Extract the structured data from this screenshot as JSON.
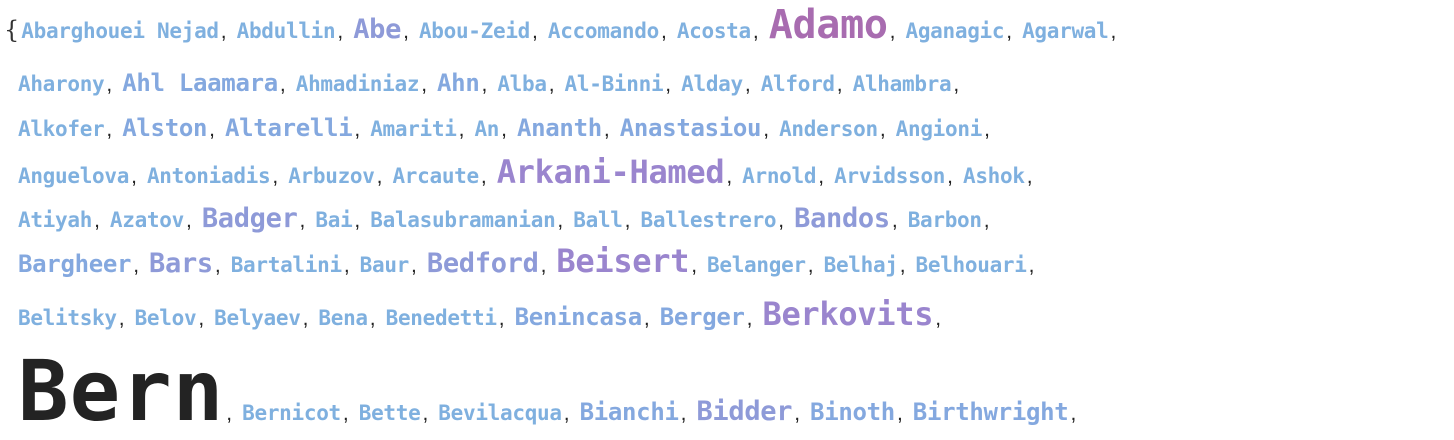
{
  "open_brace": "{",
  "separator": ",",
  "lines": [
    [
      {
        "text": "Abarghouei Nejad",
        "size": 1
      },
      {
        "text": "Abdullin",
        "size": 1
      },
      {
        "text": "Abe",
        "size": 3
      },
      {
        "text": "Abou-Zeid",
        "size": 1
      },
      {
        "text": "Accomando",
        "size": 1
      },
      {
        "text": "Acosta",
        "size": 1
      },
      {
        "text": "Adamo",
        "size": 5
      },
      {
        "text": "Aganagic",
        "size": 1
      },
      {
        "text": "Agarwal",
        "size": 1
      }
    ],
    [
      {
        "text": "Aharony",
        "size": 1
      },
      {
        "text": "Ahl Laamara",
        "size": 2
      },
      {
        "text": "Ahmadiniaz",
        "size": 1
      },
      {
        "text": "Ahn",
        "size": 2
      },
      {
        "text": "Alba",
        "size": 1
      },
      {
        "text": "Al-Binni",
        "size": 1
      },
      {
        "text": "Alday",
        "size": 1
      },
      {
        "text": "Alford",
        "size": 1
      },
      {
        "text": "Alhambra",
        "size": 1
      }
    ],
    [
      {
        "text": "Alkofer",
        "size": 1
      },
      {
        "text": "Alston",
        "size": 2
      },
      {
        "text": "Altarelli",
        "size": 2
      },
      {
        "text": "Amariti",
        "size": 1
      },
      {
        "text": "An",
        "size": 1
      },
      {
        "text": "Ananth",
        "size": 2
      },
      {
        "text": "Anastasiou",
        "size": 2
      },
      {
        "text": "Anderson",
        "size": 1
      },
      {
        "text": "Angioni",
        "size": 1
      }
    ],
    [
      {
        "text": "Anguelova",
        "size": 1
      },
      {
        "text": "Antoniadis",
        "size": 1
      },
      {
        "text": "Arbuzov",
        "size": 1
      },
      {
        "text": "Arcaute",
        "size": 1
      },
      {
        "text": "Arkani-Hamed",
        "size": 4
      },
      {
        "text": "Arnold",
        "size": 1
      },
      {
        "text": "Arvidsson",
        "size": 1
      },
      {
        "text": "Ashok",
        "size": 1
      }
    ],
    [
      {
        "text": "Atiyah",
        "size": 1
      },
      {
        "text": "Azatov",
        "size": 1
      },
      {
        "text": "Badger",
        "size": 3
      },
      {
        "text": "Bai",
        "size": 1
      },
      {
        "text": "Balasubramanian",
        "size": 1
      },
      {
        "text": "Ball",
        "size": 1
      },
      {
        "text": "Ballestrero",
        "size": 1
      },
      {
        "text": "Bandos",
        "size": 3
      },
      {
        "text": "Barbon",
        "size": 1
      }
    ],
    [
      {
        "text": "Bargheer",
        "size": 2
      },
      {
        "text": "Bars",
        "size": 3
      },
      {
        "text": "Bartalini",
        "size": 1
      },
      {
        "text": "Baur",
        "size": 1
      },
      {
        "text": "Bedford",
        "size": 3
      },
      {
        "text": "Beisert",
        "size": 4
      },
      {
        "text": "Belanger",
        "size": 1
      },
      {
        "text": "Belhaj",
        "size": 1
      },
      {
        "text": "Belhouari",
        "size": 1
      }
    ],
    [
      {
        "text": "Belitsky",
        "size": 1
      },
      {
        "text": "Belov",
        "size": 1
      },
      {
        "text": "Belyaev",
        "size": 1
      },
      {
        "text": "Bena",
        "size": 1
      },
      {
        "text": "Benedetti",
        "size": 1
      },
      {
        "text": "Benincasa",
        "size": 2
      },
      {
        "text": "Berger",
        "size": 2
      },
      {
        "text": "Berkovits",
        "size": 4
      }
    ],
    [
      {
        "text": "Bern",
        "size": 6
      },
      {
        "text": "Bernicot",
        "size": 1
      },
      {
        "text": "Bette",
        "size": 1
      },
      {
        "text": "Bevilacqua",
        "size": 1
      },
      {
        "text": "Bianchi",
        "size": 2
      },
      {
        "text": "Bidder",
        "size": 3
      },
      {
        "text": "Binoth",
        "size": 2
      },
      {
        "text": "Birthwright",
        "size": 2
      }
    ]
  ]
}
